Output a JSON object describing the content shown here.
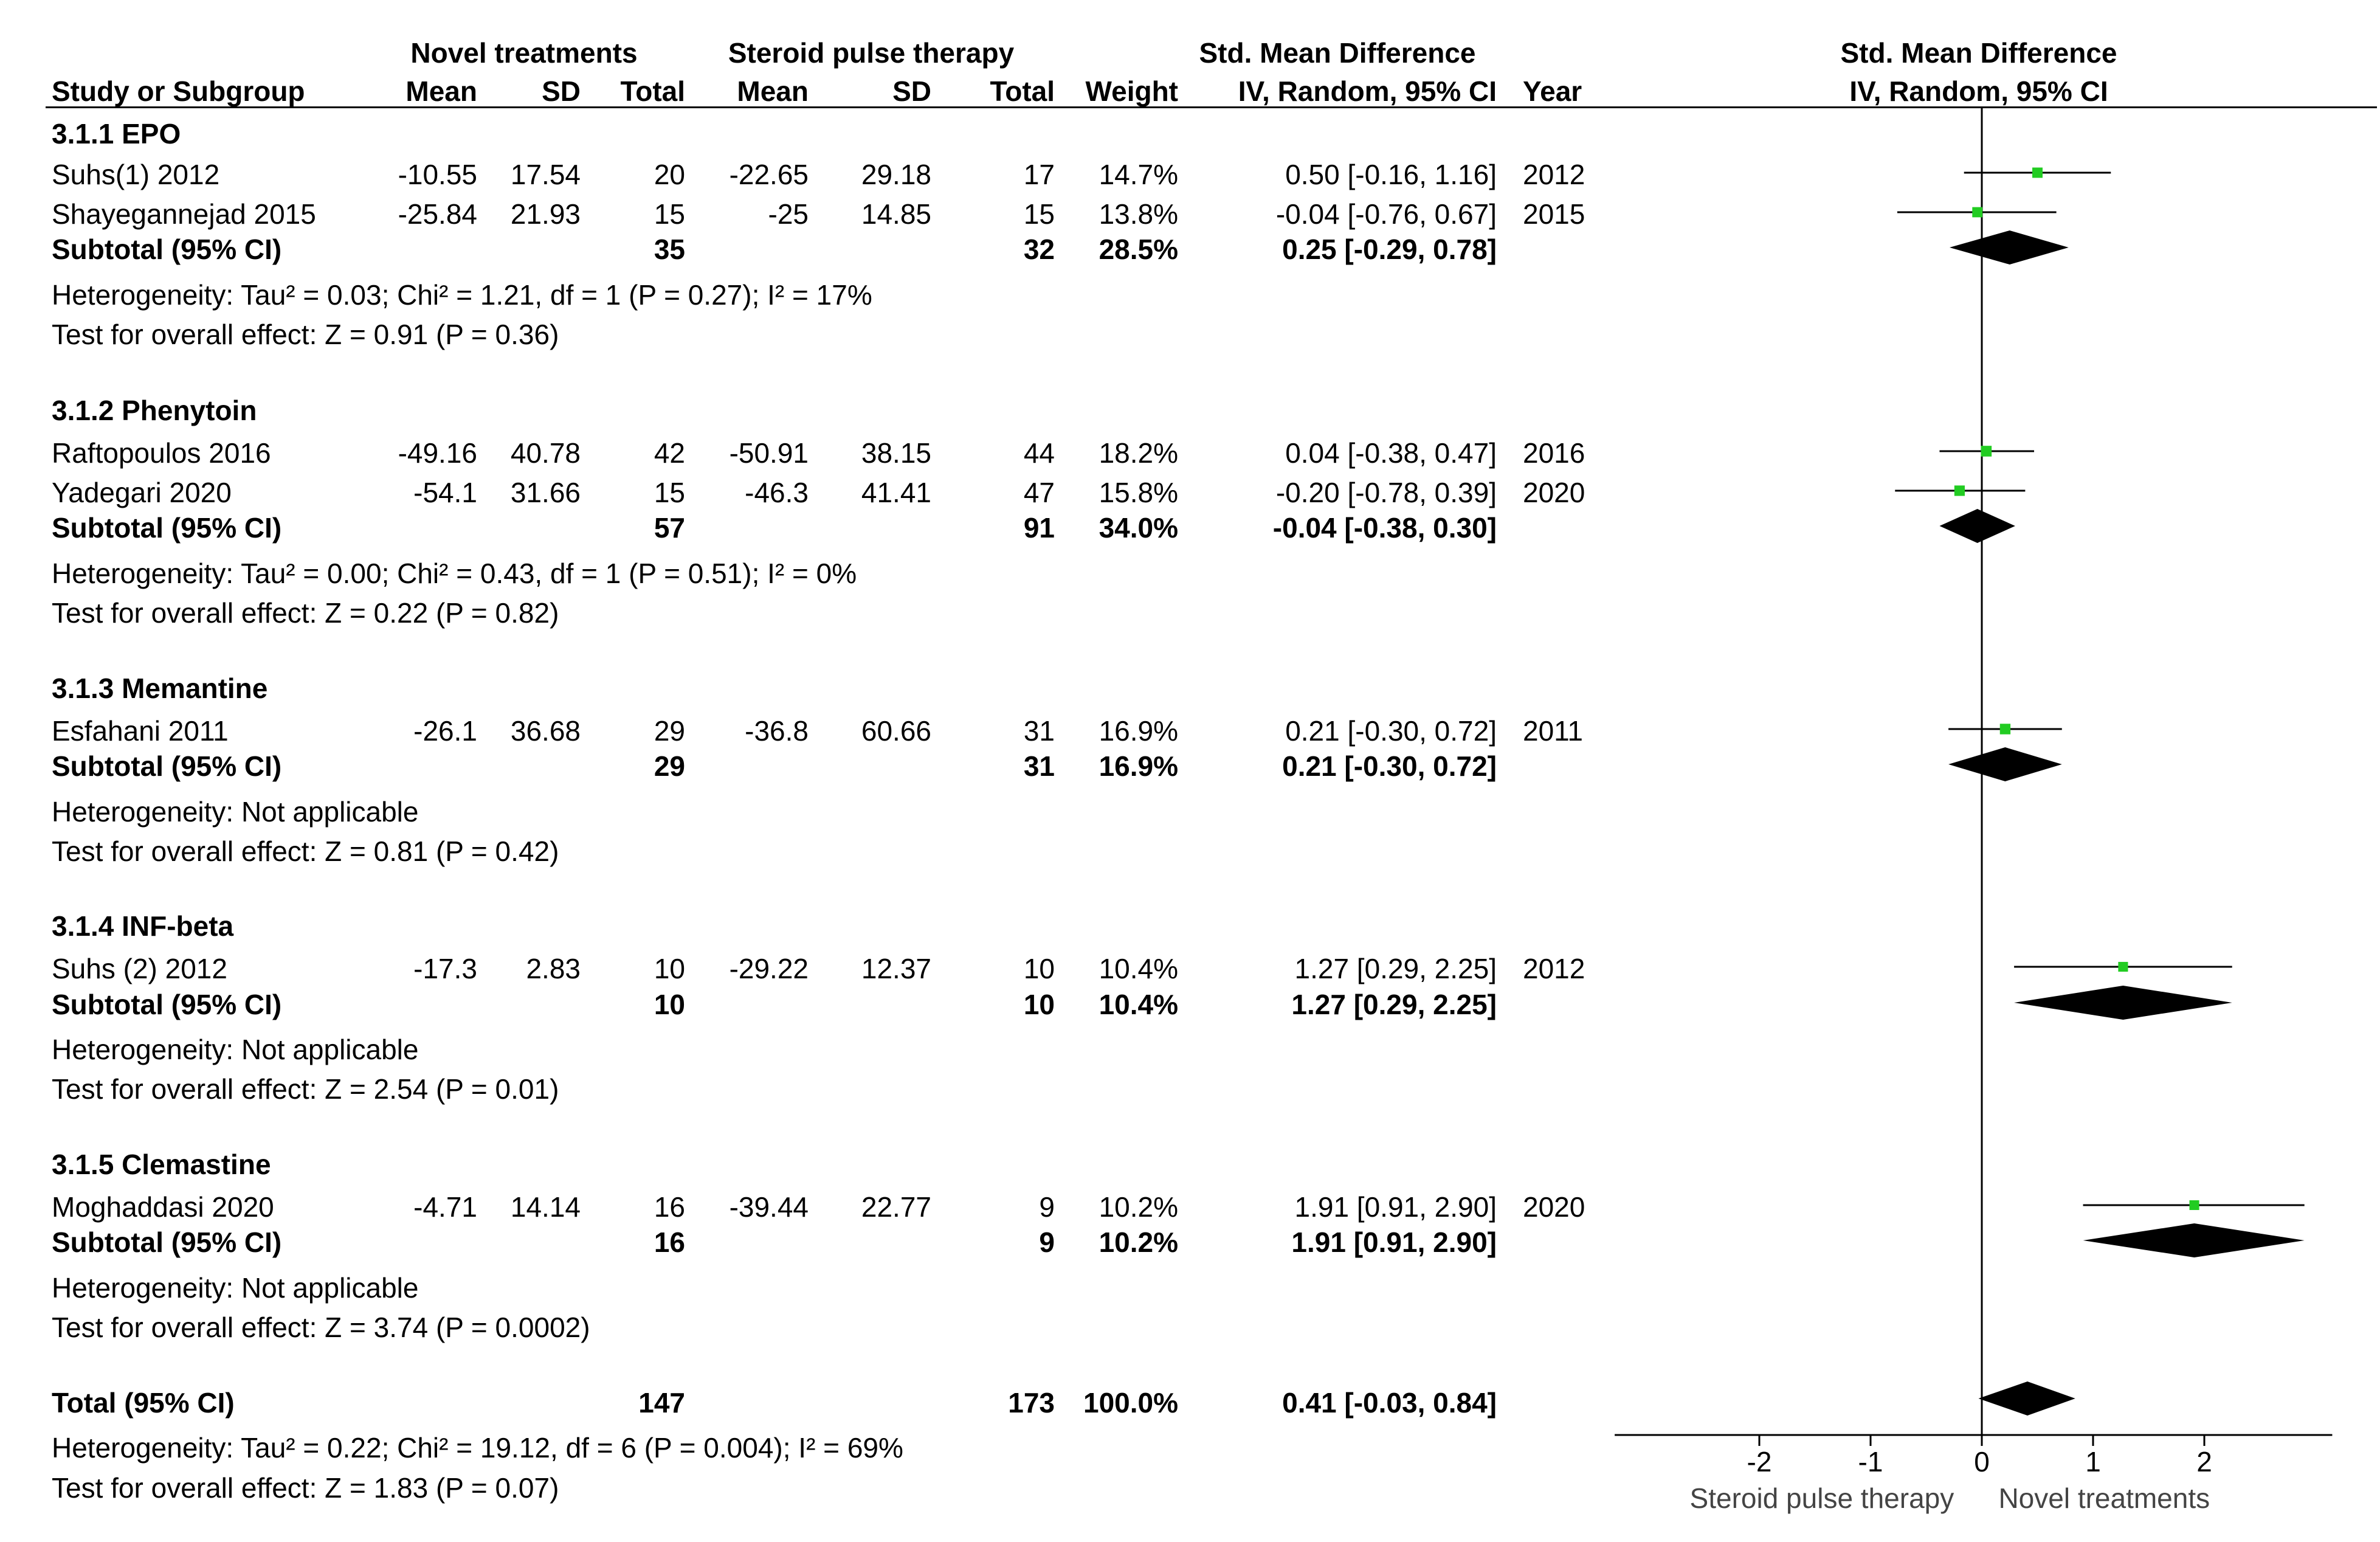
{
  "headers": {
    "group_novel": "Novel treatments",
    "group_steroid": "Steroid pulse therapy",
    "smd_table": "Std. Mean Difference",
    "smd_plot": "Std. Mean Difference",
    "study": "Study or Subgroup",
    "mean1": "Mean",
    "sd1": "SD",
    "total1": "Total",
    "mean2": "Mean",
    "sd2": "SD",
    "total2": "Total",
    "weight": "Weight",
    "ci_table": "IV, Random, 95% CI",
    "year": "Year",
    "ci_plot": "IV, Random, 95% CI"
  },
  "subgroups": [
    {
      "title": "3.1.1 EPO",
      "studies": [
        {
          "name": "Suhs(1) 2012",
          "mean1": "-10.55",
          "sd1": "17.54",
          "total1": "20",
          "mean2": "-22.65",
          "sd2": "29.18",
          "total2": "17",
          "weight": "14.7%",
          "ci": "0.50 [-0.16, 1.16]",
          "year": "2012"
        },
        {
          "name": "Shayegannejad 2015",
          "mean1": "-25.84",
          "sd1": "21.93",
          "total1": "15",
          "mean2": "-25",
          "sd2": "14.85",
          "total2": "15",
          "weight": "13.8%",
          "ci": "-0.04 [-0.76, 0.67]",
          "year": "2015"
        }
      ],
      "subtotal": {
        "label": "Subtotal (95% CI)",
        "total1": "35",
        "total2": "32",
        "weight": "28.5%",
        "ci": "0.25 [-0.29, 0.78]"
      },
      "heterogeneity": "Heterogeneity: Tau² = 0.03; Chi² = 1.21, df = 1 (P = 0.27); I² = 17%",
      "test": "Test for overall effect: Z = 0.91 (P = 0.36)"
    },
    {
      "title": "3.1.2 Phenytoin",
      "studies": [
        {
          "name": "Raftopoulos 2016",
          "mean1": "-49.16",
          "sd1": "40.78",
          "total1": "42",
          "mean2": "-50.91",
          "sd2": "38.15",
          "total2": "44",
          "weight": "18.2%",
          "ci": "0.04 [-0.38, 0.47]",
          "year": "2016"
        },
        {
          "name": "Yadegari 2020",
          "mean1": "-54.1",
          "sd1": "31.66",
          "total1": "15",
          "mean2": "-46.3",
          "sd2": "41.41",
          "total2": "47",
          "weight": "15.8%",
          "ci": "-0.20 [-0.78, 0.39]",
          "year": "2020"
        }
      ],
      "subtotal": {
        "label": "Subtotal (95% CI)",
        "total1": "57",
        "total2": "91",
        "weight": "34.0%",
        "ci": "-0.04 [-0.38, 0.30]"
      },
      "heterogeneity": "Heterogeneity: Tau² = 0.00; Chi² = 0.43, df = 1 (P = 0.51); I² = 0%",
      "test": "Test for overall effect: Z = 0.22 (P = 0.82)"
    },
    {
      "title": "3.1.3 Memantine",
      "studies": [
        {
          "name": "Esfahani 2011",
          "mean1": "-26.1",
          "sd1": "36.68",
          "total1": "29",
          "mean2": "-36.8",
          "sd2": "60.66",
          "total2": "31",
          "weight": "16.9%",
          "ci": "0.21 [-0.30, 0.72]",
          "year": "2011"
        }
      ],
      "subtotal": {
        "label": "Subtotal (95% CI)",
        "total1": "29",
        "total2": "31",
        "weight": "16.9%",
        "ci": "0.21 [-0.30, 0.72]"
      },
      "heterogeneity": "Heterogeneity: Not applicable",
      "test": "Test for overall effect: Z = 0.81 (P = 0.42)"
    },
    {
      "title": "3.1.4 INF-beta",
      "studies": [
        {
          "name": "Suhs (2) 2012",
          "mean1": "-17.3",
          "sd1": "2.83",
          "total1": "10",
          "mean2": "-29.22",
          "sd2": "12.37",
          "total2": "10",
          "weight": "10.4%",
          "ci": "1.27 [0.29, 2.25]",
          "year": "2012"
        }
      ],
      "subtotal": {
        "label": "Subtotal (95% CI)",
        "total1": "10",
        "total2": "10",
        "weight": "10.4%",
        "ci": "1.27 [0.29, 2.25]"
      },
      "heterogeneity": "Heterogeneity: Not applicable",
      "test": "Test for overall effect: Z = 2.54 (P = 0.01)"
    },
    {
      "title": "3.1.5 Clemastine",
      "studies": [
        {
          "name": "Moghaddasi 2020",
          "mean1": "-4.71",
          "sd1": "14.14",
          "total1": "16",
          "mean2": "-39.44",
          "sd2": "22.77",
          "total2": "9",
          "weight": "10.2%",
          "ci": "1.91 [0.91, 2.90]",
          "year": "2020"
        }
      ],
      "subtotal": {
        "label": "Subtotal (95% CI)",
        "total1": "16",
        "total2": "9",
        "weight": "10.2%",
        "ci": "1.91 [0.91, 2.90]"
      },
      "heterogeneity": "Heterogeneity: Not applicable",
      "test": "Test for overall effect: Z = 3.74 (P = 0.0002)"
    }
  ],
  "overall": {
    "label": "Total (95% CI)",
    "total1": "147",
    "total2": "173",
    "weight": "100.0%",
    "ci": "0.41 [-0.03, 0.84]",
    "heterogeneity": "Heterogeneity: Tau² = 0.22; Chi² = 19.12, df = 6 (P = 0.004); I² = 69%",
    "test": "Test for overall effect: Z = 1.83 (P = 0.07)"
  },
  "axis": {
    "left_label": "Steroid pulse therapy",
    "right_label": "Novel treatments"
  },
  "colors": {
    "study_marker": "#22cc22",
    "diamond": "#000000",
    "line": "#000000"
  },
  "chart_data": {
    "type": "forest",
    "title": "Std. Mean Difference",
    "xlabel": "IV, Random, 95% CI",
    "xlim": [
      -3.2,
      3.2
    ],
    "ticks": [
      -2,
      -1,
      0,
      1,
      2
    ],
    "tick_labels": [
      "-2",
      "-1",
      "0",
      "1",
      "2"
    ],
    "studies": [
      {
        "name": "Suhs(1) 2012",
        "est": 0.5,
        "lo": -0.16,
        "hi": 1.16,
        "weight": 14.7
      },
      {
        "name": "Shayegannejad 2015",
        "est": -0.04,
        "lo": -0.76,
        "hi": 0.67,
        "weight": 13.8
      },
      {
        "name": "Raftopoulos 2016",
        "est": 0.04,
        "lo": -0.38,
        "hi": 0.47,
        "weight": 18.2
      },
      {
        "name": "Yadegari 2020",
        "est": -0.2,
        "lo": -0.78,
        "hi": 0.39,
        "weight": 15.8
      },
      {
        "name": "Esfahani 2011",
        "est": 0.21,
        "lo": -0.3,
        "hi": 0.72,
        "weight": 16.9
      },
      {
        "name": "Suhs (2) 2012",
        "est": 1.27,
        "lo": 0.29,
        "hi": 2.25,
        "weight": 10.4
      },
      {
        "name": "Moghaddasi 2020",
        "est": 1.91,
        "lo": 0.91,
        "hi": 2.9,
        "weight": 10.2
      }
    ],
    "subtotals": [
      {
        "name": "3.1.1 EPO",
        "est": 0.25,
        "lo": -0.29,
        "hi": 0.78
      },
      {
        "name": "3.1.2 Phenytoin",
        "est": -0.04,
        "lo": -0.38,
        "hi": 0.3
      },
      {
        "name": "3.1.3 Memantine",
        "est": 0.21,
        "lo": -0.3,
        "hi": 0.72
      },
      {
        "name": "3.1.4 INF-beta",
        "est": 1.27,
        "lo": 0.29,
        "hi": 2.25
      },
      {
        "name": "3.1.5 Clemastine",
        "est": 1.91,
        "lo": 0.91,
        "hi": 2.9
      }
    ],
    "total": {
      "name": "Total (95% CI)",
      "est": 0.41,
      "lo": -0.03,
      "hi": 0.84
    },
    "favours_left": "Steroid pulse therapy",
    "favours_right": "Novel treatments"
  }
}
